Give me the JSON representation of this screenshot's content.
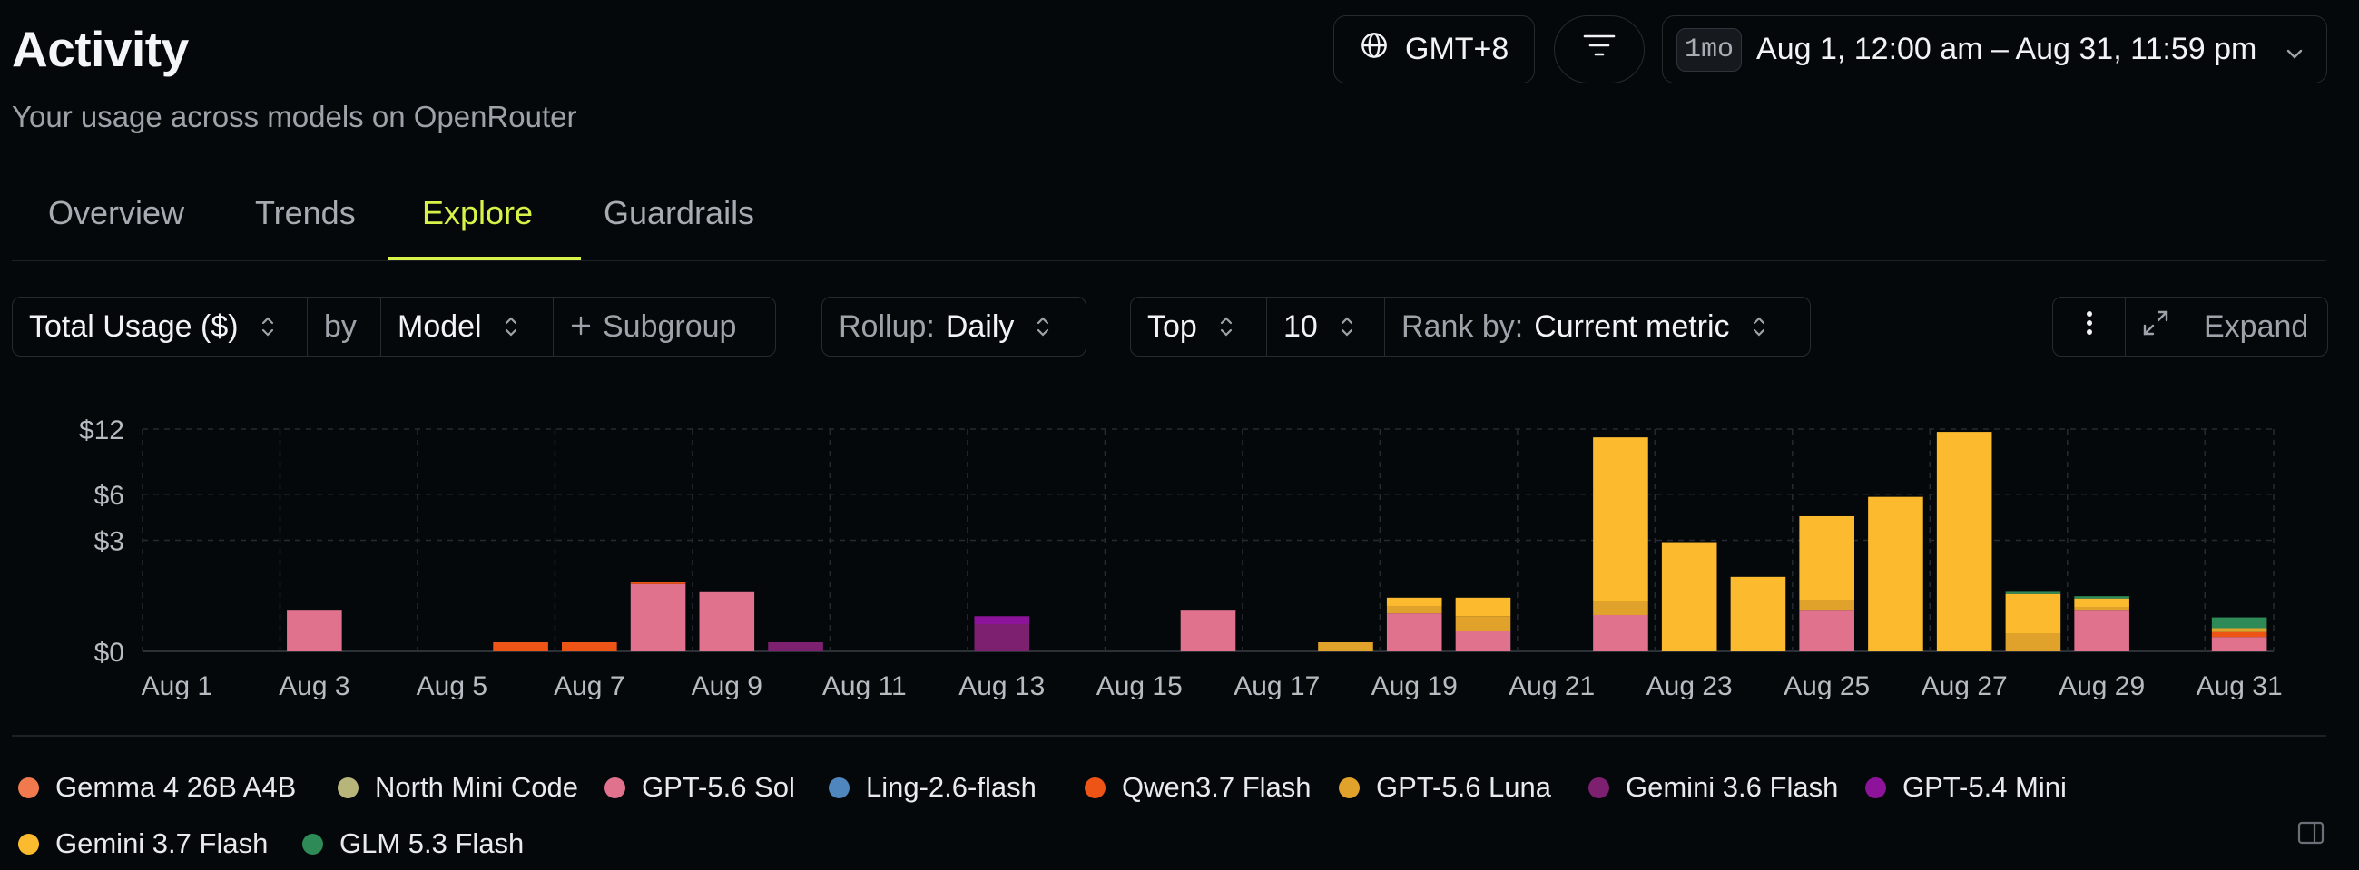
{
  "header": {
    "title": "Activity",
    "subtitle": "Your usage across models on OpenRouter",
    "timezone": "GMT+8",
    "range_badge": "1mo",
    "range_label": "Aug 1, 12:00 am – Aug 31, 11:59 pm"
  },
  "tabs": [
    {
      "label": "Overview",
      "active": false
    },
    {
      "label": "Trends",
      "active": false
    },
    {
      "label": "Explore",
      "active": true
    },
    {
      "label": "Guardrails",
      "active": false
    }
  ],
  "controls": {
    "metric": "Total Usage ($)",
    "by_label": "by",
    "group": "Model",
    "subgroup": "Subgroup",
    "rollup_label": "Rollup:",
    "rollup_value": "Daily",
    "top_label": "Top",
    "top_value": "10",
    "rank_label": "Rank by:",
    "rank_value": "Current metric",
    "expand_label": "Expand"
  },
  "chart_data": {
    "type": "bar",
    "stacked": true,
    "y_scale": "sqrt",
    "ylim": [
      0,
      12
    ],
    "y_ticks": [
      {
        "value": 0,
        "label": "$0"
      },
      {
        "value": 3,
        "label": "$3"
      },
      {
        "value": 6,
        "label": "$6"
      },
      {
        "value": 12,
        "label": "$12"
      }
    ],
    "categories": [
      "Aug 1",
      "Aug 2",
      "Aug 3",
      "Aug 4",
      "Aug 5",
      "Aug 6",
      "Aug 7",
      "Aug 8",
      "Aug 9",
      "Aug 10",
      "Aug 11",
      "Aug 12",
      "Aug 13",
      "Aug 14",
      "Aug 15",
      "Aug 16",
      "Aug 17",
      "Aug 18",
      "Aug 19",
      "Aug 20",
      "Aug 21",
      "Aug 22",
      "Aug 23",
      "Aug 24",
      "Aug 25",
      "Aug 26",
      "Aug 27",
      "Aug 28",
      "Aug 29",
      "Aug 30",
      "Aug 31"
    ],
    "x_tick_labels": [
      "Aug 1",
      "Aug 3",
      "Aug 5",
      "Aug 7",
      "Aug 9",
      "Aug 11",
      "Aug 13",
      "Aug 15",
      "Aug 17",
      "Aug 19",
      "Aug 21",
      "Aug 23",
      "Aug 25",
      "Aug 27",
      "Aug 29",
      "Aug 31"
    ],
    "grid": true,
    "legend_position": "bottom",
    "series": [
      {
        "name": "Gemma 4 26B A4B",
        "color": "#f07a4e",
        "values": [
          0,
          0,
          0,
          0,
          0,
          0,
          0,
          0,
          0,
          0,
          0,
          0,
          0,
          0,
          0,
          0,
          0,
          0,
          0,
          0,
          0,
          0,
          0,
          0,
          0,
          0,
          0,
          0,
          0,
          0,
          0
        ]
      },
      {
        "name": "North Mini Code",
        "color": "#b7b57a",
        "values": [
          0,
          0,
          0,
          0,
          0,
          0,
          0,
          0,
          0,
          0,
          0,
          0,
          0,
          0,
          0,
          0,
          0,
          0,
          0,
          0,
          0,
          0,
          0,
          0,
          0,
          0,
          0,
          0,
          0,
          0,
          0
        ]
      },
      {
        "name": "GPT-5.6 Sol",
        "color": "#e0728e",
        "values": [
          0,
          0,
          0.42,
          0,
          0,
          0,
          0,
          1.1,
          0.85,
          0,
          0,
          0,
          0,
          0,
          0,
          0.42,
          0,
          0,
          0.35,
          0.1,
          0,
          0.32,
          0,
          0,
          0.42,
          0,
          0,
          0,
          0.42,
          0,
          0.05
        ]
      },
      {
        "name": "Ling-2.6-flash",
        "color": "#4f86bd",
        "values": [
          0,
          0,
          0,
          0,
          0,
          0,
          0,
          0,
          0,
          0,
          0,
          0,
          0,
          0,
          0,
          0,
          0,
          0,
          0,
          0,
          0,
          0,
          0,
          0,
          0,
          0,
          0,
          0,
          0,
          0,
          0
        ]
      },
      {
        "name": "Qwen3.7 Flash",
        "color": "#ef5417",
        "values": [
          0,
          0,
          0,
          0,
          0,
          0.02,
          0.02,
          0.03,
          0,
          0,
          0,
          0,
          0,
          0,
          0,
          0,
          0,
          0,
          0,
          0,
          0,
          0,
          0,
          0,
          0,
          0,
          0,
          0,
          0,
          0,
          0.04
        ]
      },
      {
        "name": "GPT-5.6 Luna",
        "color": "#e0a22a",
        "values": [
          0,
          0,
          0,
          0,
          0,
          0,
          0,
          0,
          0,
          0,
          0,
          0,
          0,
          0,
          0,
          0,
          0,
          0.02,
          0.15,
          0.2,
          0,
          0.3,
          0,
          0,
          0.22,
          0,
          0,
          0.08,
          0.06,
          0,
          0.04
        ]
      },
      {
        "name": "Gemini 3.6 Flash",
        "color": "#7d2070",
        "values": [
          0,
          0,
          0,
          0,
          0,
          0,
          0,
          0,
          0,
          0.02,
          0,
          0,
          0.18,
          0,
          0,
          0,
          0,
          0,
          0,
          0,
          0,
          0,
          0,
          0,
          0,
          0,
          0,
          0,
          0,
          0,
          0
        ]
      },
      {
        "name": "GPT-5.4 Mini",
        "color": "#8d149a",
        "values": [
          0,
          0,
          0,
          0,
          0,
          0,
          0,
          0,
          0,
          0,
          0,
          0,
          0.12,
          0,
          0,
          0,
          0,
          0,
          0,
          0,
          0,
          0,
          0,
          0,
          0,
          0,
          0,
          0,
          0,
          0,
          0
        ]
      },
      {
        "name": "Gemini 3.7 Flash",
        "color": "#fcbb2f",
        "values": [
          0,
          0,
          0,
          0,
          0,
          0,
          0,
          0,
          0,
          0,
          0,
          0,
          0,
          0,
          0,
          0,
          0,
          0,
          0.2,
          0.4,
          0,
          10.5,
          2.9,
          1.35,
          3.8,
          5.8,
          11.7,
          0.72,
          0.2,
          0,
          0
        ]
      },
      {
        "name": "GLM 5.3 Flash",
        "color": "#2e8b57",
        "values": [
          0,
          0,
          0,
          0,
          0,
          0,
          0,
          0,
          0,
          0,
          0,
          0,
          0,
          0,
          0,
          0,
          0,
          0,
          0,
          0,
          0,
          0,
          0,
          0,
          0,
          0,
          0,
          0.06,
          0.06,
          0,
          0.15
        ]
      }
    ]
  },
  "legend": [
    {
      "label": "Gemma 4 26B A4B",
      "color": "#f07a4e"
    },
    {
      "label": "North Mini Code",
      "color": "#b7b57a"
    },
    {
      "label": "GPT-5.6 Sol",
      "color": "#e0728e"
    },
    {
      "label": "Ling-2.6-flash",
      "color": "#4f86bd"
    },
    {
      "label": "Qwen3.7 Flash",
      "color": "#ef5417"
    },
    {
      "label": "GPT-5.6 Luna",
      "color": "#e0a22a"
    },
    {
      "label": "Gemini 3.6 Flash",
      "color": "#7d2070"
    },
    {
      "label": "GPT-5.4 Mini",
      "color": "#8d149a"
    },
    {
      "label": "Gemini 3.7 Flash",
      "color": "#fcbb2f"
    },
    {
      "label": "GLM 5.3 Flash",
      "color": "#2e8b57"
    }
  ],
  "icons": {
    "timezone": "globe-icon",
    "filter": "filter-icon",
    "range_dropdown": "chevron-down-icon",
    "updown": "chevron-updown-icon",
    "subgroup": "plus-icon",
    "more": "more-vertical-icon",
    "expand": "expand-icon",
    "panel": "sidebar-panel-icon"
  }
}
